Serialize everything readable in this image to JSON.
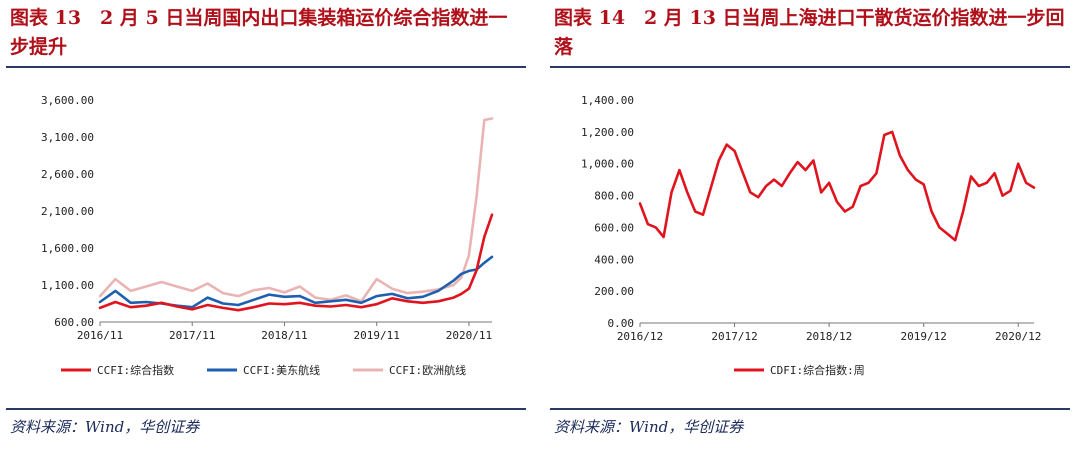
{
  "left": {
    "title": "图表 13　2 月 5 日当周国内出口集装箱运价综合指数进一步提升",
    "source": "资料来源：Wind，华创证券"
  },
  "right": {
    "title": "图表 14　2 月 13 日当周上海进口干散货运价指数进一步回落",
    "source": "资料来源：Wind，华创证券"
  },
  "chart_data": [
    {
      "type": "line",
      "x_range": [
        "2016-11",
        "2021-02"
      ],
      "ylim": [
        600,
        3600
      ],
      "yticks": [
        "600.00",
        "1,100.00",
        "1,600.00",
        "2,100.00",
        "2,600.00",
        "3,100.00",
        "3,600.00"
      ],
      "xticks": [
        "2016/11",
        "2017/11",
        "2018/11",
        "2019/11",
        "2020/11"
      ],
      "legend_position": "bottom",
      "series": [
        {
          "name": "CCFI:综合指数",
          "color": "#e0141e",
          "points": [
            [
              "2016-11",
              790
            ],
            [
              "2017-01",
              870
            ],
            [
              "2017-03",
              800
            ],
            [
              "2017-05",
              820
            ],
            [
              "2017-07",
              860
            ],
            [
              "2017-09",
              810
            ],
            [
              "2017-11",
              770
            ],
            [
              "2018-01",
              830
            ],
            [
              "2018-03",
              790
            ],
            [
              "2018-05",
              760
            ],
            [
              "2018-07",
              800
            ],
            [
              "2018-09",
              850
            ],
            [
              "2018-11",
              840
            ],
            [
              "2019-01",
              860
            ],
            [
              "2019-03",
              820
            ],
            [
              "2019-05",
              810
            ],
            [
              "2019-07",
              830
            ],
            [
              "2019-09",
              800
            ],
            [
              "2019-11",
              840
            ],
            [
              "2020-01",
              920
            ],
            [
              "2020-03",
              880
            ],
            [
              "2020-05",
              860
            ],
            [
              "2020-07",
              880
            ],
            [
              "2020-09",
              930
            ],
            [
              "2020-10",
              980
            ],
            [
              "2020-11",
              1050
            ],
            [
              "2020-12",
              1300
            ],
            [
              "2021-01",
              1750
            ],
            [
              "2021-02",
              2050
            ]
          ]
        },
        {
          "name": "CCFI:美东航线",
          "color": "#1f5fb0",
          "points": [
            [
              "2016-11",
              870
            ],
            [
              "2017-01",
              1020
            ],
            [
              "2017-03",
              860
            ],
            [
              "2017-05",
              870
            ],
            [
              "2017-07",
              850
            ],
            [
              "2017-09",
              820
            ],
            [
              "2017-11",
              800
            ],
            [
              "2018-01",
              930
            ],
            [
              "2018-03",
              850
            ],
            [
              "2018-05",
              830
            ],
            [
              "2018-07",
              900
            ],
            [
              "2018-09",
              970
            ],
            [
              "2018-11",
              940
            ],
            [
              "2019-01",
              950
            ],
            [
              "2019-03",
              860
            ],
            [
              "2019-05",
              880
            ],
            [
              "2019-07",
              900
            ],
            [
              "2019-09",
              860
            ],
            [
              "2019-11",
              950
            ],
            [
              "2020-01",
              980
            ],
            [
              "2020-03",
              920
            ],
            [
              "2020-05",
              940
            ],
            [
              "2020-07",
              1020
            ],
            [
              "2020-09",
              1160
            ],
            [
              "2020-10",
              1250
            ],
            [
              "2020-11",
              1290
            ],
            [
              "2020-12",
              1310
            ],
            [
              "2021-01",
              1400
            ],
            [
              "2021-02",
              1480
            ]
          ]
        },
        {
          "name": "CCFI:欧洲航线",
          "color": "#eab4b4",
          "points": [
            [
              "2016-11",
              950
            ],
            [
              "2017-01",
              1180
            ],
            [
              "2017-03",
              1020
            ],
            [
              "2017-05",
              1080
            ],
            [
              "2017-07",
              1140
            ],
            [
              "2017-09",
              1080
            ],
            [
              "2017-11",
              1020
            ],
            [
              "2018-01",
              1120
            ],
            [
              "2018-03",
              990
            ],
            [
              "2018-05",
              950
            ],
            [
              "2018-07",
              1030
            ],
            [
              "2018-09",
              1060
            ],
            [
              "2018-11",
              1000
            ],
            [
              "2019-01",
              1080
            ],
            [
              "2019-03",
              930
            ],
            [
              "2019-05",
              900
            ],
            [
              "2019-07",
              960
            ],
            [
              "2019-09",
              880
            ],
            [
              "2019-11",
              1180
            ],
            [
              "2020-01",
              1050
            ],
            [
              "2020-03",
              990
            ],
            [
              "2020-05",
              1010
            ],
            [
              "2020-07",
              1040
            ],
            [
              "2020-09",
              1100
            ],
            [
              "2020-10",
              1200
            ],
            [
              "2020-11",
              1500
            ],
            [
              "2020-12",
              2300
            ],
            [
              "2021-01",
              3330
            ],
            [
              "2021-02",
              3350
            ]
          ]
        }
      ]
    },
    {
      "type": "line",
      "x_range": [
        "2016-12",
        "2021-02"
      ],
      "ylim": [
        0,
        1400
      ],
      "yticks": [
        "0.00",
        "200.00",
        "400.00",
        "600.00",
        "800.00",
        "1,000.00",
        "1,200.00",
        "1,400.00"
      ],
      "xticks": [
        "2016/12",
        "2017/12",
        "2018/12",
        "2019/12",
        "2020/12"
      ],
      "legend_position": "bottom",
      "series": [
        {
          "name": "CDFI:综合指数:周",
          "color": "#e0141e",
          "points": [
            [
              "2016-12",
              750
            ],
            [
              "2017-01",
              620
            ],
            [
              "2017-02",
              600
            ],
            [
              "2017-03",
              540
            ],
            [
              "2017-04",
              820
            ],
            [
              "2017-05",
              960
            ],
            [
              "2017-06",
              820
            ],
            [
              "2017-07",
              700
            ],
            [
              "2017-08",
              680
            ],
            [
              "2017-09",
              850
            ],
            [
              "2017-10",
              1020
            ],
            [
              "2017-11",
              1120
            ],
            [
              "2017-12",
              1080
            ],
            [
              "2018-01",
              950
            ],
            [
              "2018-02",
              820
            ],
            [
              "2018-03",
              790
            ],
            [
              "2018-04",
              860
            ],
            [
              "2018-05",
              900
            ],
            [
              "2018-06",
              860
            ],
            [
              "2018-07",
              940
            ],
            [
              "2018-08",
              1010
            ],
            [
              "2018-09",
              960
            ],
            [
              "2018-10",
              1020
            ],
            [
              "2018-11",
              820
            ],
            [
              "2018-12",
              880
            ],
            [
              "2019-01",
              760
            ],
            [
              "2019-02",
              700
            ],
            [
              "2019-03",
              730
            ],
            [
              "2019-04",
              860
            ],
            [
              "2019-05",
              880
            ],
            [
              "2019-06",
              940
            ],
            [
              "2019-07",
              1180
            ],
            [
              "2019-08",
              1200
            ],
            [
              "2019-09",
              1050
            ],
            [
              "2019-10",
              960
            ],
            [
              "2019-11",
              900
            ],
            [
              "2019-12",
              870
            ],
            [
              "2020-01",
              700
            ],
            [
              "2020-02",
              600
            ],
            [
              "2020-03",
              560
            ],
            [
              "2020-04",
              520
            ],
            [
              "2020-05",
              700
            ],
            [
              "2020-06",
              920
            ],
            [
              "2020-07",
              860
            ],
            [
              "2020-08",
              880
            ],
            [
              "2020-09",
              940
            ],
            [
              "2020-10",
              800
            ],
            [
              "2020-11",
              830
            ],
            [
              "2020-12",
              1000
            ],
            [
              "2021-01",
              880
            ],
            [
              "2021-02",
              850
            ]
          ]
        }
      ]
    }
  ]
}
